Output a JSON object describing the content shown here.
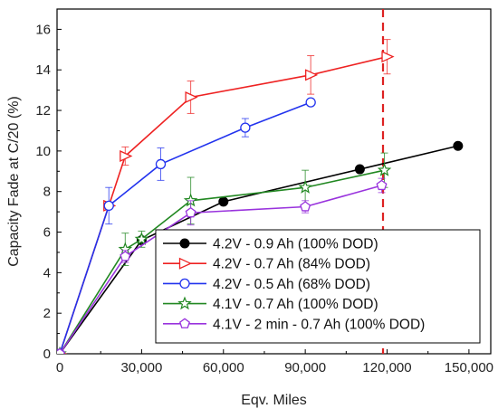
{
  "chart_data": {
    "type": "line",
    "title": "",
    "xlabel": "Eqv. Miles",
    "ylabel": "Capacity Fade at C/20 (%)",
    "xlim": [
      -1000,
      158000
    ],
    "ylim": [
      0,
      17
    ],
    "x_ticks": [
      0,
      30000,
      60000,
      90000,
      120000,
      150000
    ],
    "x_tick_labels": [
      "0",
      "30,000",
      "60,000",
      "90,000",
      "120,000",
      "150,000"
    ],
    "y_ticks": [
      0,
      2,
      4,
      6,
      8,
      10,
      12,
      14,
      16
    ],
    "y_tick_labels": [
      "0",
      "2",
      "4",
      "6",
      "8",
      "10",
      "12",
      "14",
      "16"
    ],
    "grid": false,
    "legend_position": "bottom-right",
    "reference_line": {
      "x": 118500,
      "color": "#dd2222",
      "style": "dashed"
    },
    "series": [
      {
        "name": "4.2V - 0.9 Ah (100% DOD)",
        "color": "#000000",
        "marker": "filled-circle",
        "x": [
          0,
          30000,
          60000,
          110000,
          146000
        ],
        "y": [
          0,
          5.6,
          7.5,
          9.1,
          10.25
        ],
        "err": [
          0,
          0,
          0,
          0,
          0
        ]
      },
      {
        "name": "4.2V - 0.7 Ah (84% DOD)",
        "color": "#ee2222",
        "marker": "open-triangle-right",
        "x": [
          0,
          18000,
          24000,
          48000,
          92000,
          120000
        ],
        "y": [
          0,
          7.3,
          9.75,
          12.65,
          13.75,
          14.65
        ],
        "err": [
          0,
          0,
          0.45,
          0.8,
          0.95,
          0.85
        ]
      },
      {
        "name": "4.2V - 0.5 Ah (68% DOD)",
        "color": "#2233ee",
        "marker": "open-circle",
        "x": [
          0,
          18000,
          37000,
          68000,
          92000
        ],
        "y": [
          0,
          7.3,
          9.35,
          11.15,
          12.4
        ],
        "err": [
          0,
          0.9,
          0.8,
          0.45,
          0
        ]
      },
      {
        "name": "4.1V - 0.7 Ah (100% DOD)",
        "color": "#228822",
        "marker": "open-star",
        "x": [
          0,
          24000,
          30000,
          48000,
          90000,
          119000
        ],
        "y": [
          0,
          5.15,
          5.65,
          7.55,
          8.2,
          9.05
        ],
        "err": [
          0,
          0.8,
          0.4,
          1.15,
          0.85,
          0.85
        ]
      },
      {
        "name": "4.1V - 2 min - 0.7 Ah (100% DOD)",
        "color": "#9933dd",
        "marker": "open-pentagon",
        "x": [
          0,
          24000,
          48000,
          90000,
          118000
        ],
        "y": [
          0,
          4.8,
          6.95,
          7.25,
          8.3
        ],
        "err": [
          0,
          0.3,
          0.6,
          0.3,
          0.35
        ]
      }
    ]
  }
}
